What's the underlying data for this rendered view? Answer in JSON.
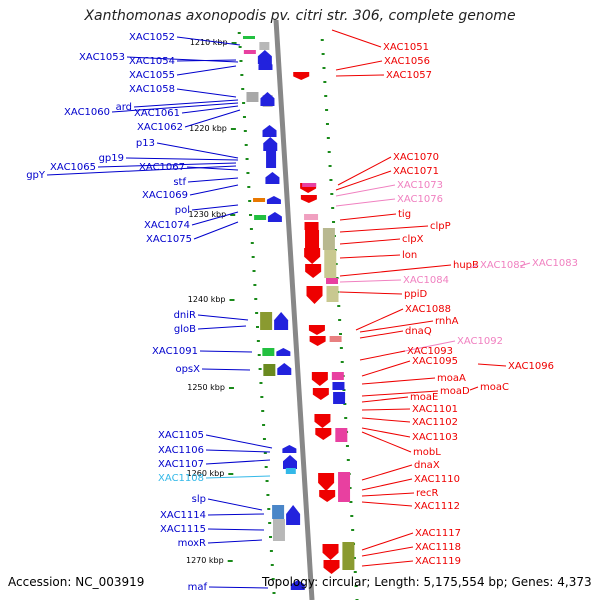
{
  "title": "Xanthomonas axonopodis pv. citri str. 306, complete genome",
  "accession": "Accession: NC_003919",
  "topology": "Topology: circular; Length: 5,175,554 bp; Genes: 4,373",
  "colors": {
    "left_label": "#0000cc",
    "right_label": "#ee0000",
    "faded_right": "#f080c0",
    "faded_left": "#33b8e8",
    "axis": "#888888",
    "tick": "#1a8a1a"
  },
  "scale_ticks": [
    {
      "label": "1210 kbp"
    },
    {
      "label": "1220 kbp"
    },
    {
      "label": "1230 kbp"
    },
    {
      "label": "1240 kbp"
    },
    {
      "label": "1250 kbp"
    },
    {
      "label": "1260 kbp"
    },
    {
      "label": "1270 kbp"
    }
  ],
  "left_genes": [
    {
      "name": "XAC1052"
    },
    {
      "name": "XAC1053"
    },
    {
      "name": "XAC1054"
    },
    {
      "name": "XAC1055"
    },
    {
      "name": "XAC1058"
    },
    {
      "name": "ard"
    },
    {
      "name": "XAC1060"
    },
    {
      "name": "XAC1061"
    },
    {
      "name": "XAC1062"
    },
    {
      "name": "p13"
    },
    {
      "name": "gp19"
    },
    {
      "name": "XAC1065"
    },
    {
      "name": "gpY"
    },
    {
      "name": "XAC1067"
    },
    {
      "name": "stf"
    },
    {
      "name": "XAC1069"
    },
    {
      "name": "pol"
    },
    {
      "name": "XAC1074"
    },
    {
      "name": "XAC1075"
    },
    {
      "name": "dniR"
    },
    {
      "name": "gloB"
    },
    {
      "name": "XAC1091"
    },
    {
      "name": "opsX"
    },
    {
      "name": "XAC1105"
    },
    {
      "name": "XAC1106"
    },
    {
      "name": "XAC1107"
    },
    {
      "name": "XAC1108"
    },
    {
      "name": "slp"
    },
    {
      "name": "XAC1114"
    },
    {
      "name": "XAC1115"
    },
    {
      "name": "moxR"
    },
    {
      "name": "maf"
    }
  ],
  "right_genes": [
    {
      "name": "XAC1051"
    },
    {
      "name": "XAC1056"
    },
    {
      "name": "XAC1057"
    },
    {
      "name": "XAC1070"
    },
    {
      "name": "XAC1071"
    },
    {
      "name": "XAC1073"
    },
    {
      "name": "XAC1076"
    },
    {
      "name": "tig"
    },
    {
      "name": "clpP"
    },
    {
      "name": "clpX"
    },
    {
      "name": "lon"
    },
    {
      "name": "hupB"
    },
    {
      "name": "XAC1082"
    },
    {
      "name": "XAC1083"
    },
    {
      "name": "XAC1084"
    },
    {
      "name": "ppiD"
    },
    {
      "name": "XAC1088"
    },
    {
      "name": "rnhA"
    },
    {
      "name": "dnaQ"
    },
    {
      "name": "XAC1092"
    },
    {
      "name": "XAC1093"
    },
    {
      "name": "XAC1095"
    },
    {
      "name": "XAC1096"
    },
    {
      "name": "moaA"
    },
    {
      "name": "moaC"
    },
    {
      "name": "moaD"
    },
    {
      "name": "moaE"
    },
    {
      "name": "XAC1101"
    },
    {
      "name": "XAC1102"
    },
    {
      "name": "XAC1103"
    },
    {
      "name": "mobL"
    },
    {
      "name": "dnaX"
    },
    {
      "name": "XAC1110"
    },
    {
      "name": "recR"
    },
    {
      "name": "XAC1112"
    },
    {
      "name": "XAC1117"
    },
    {
      "name": "XAC1118"
    },
    {
      "name": "XAC1119"
    }
  ]
}
